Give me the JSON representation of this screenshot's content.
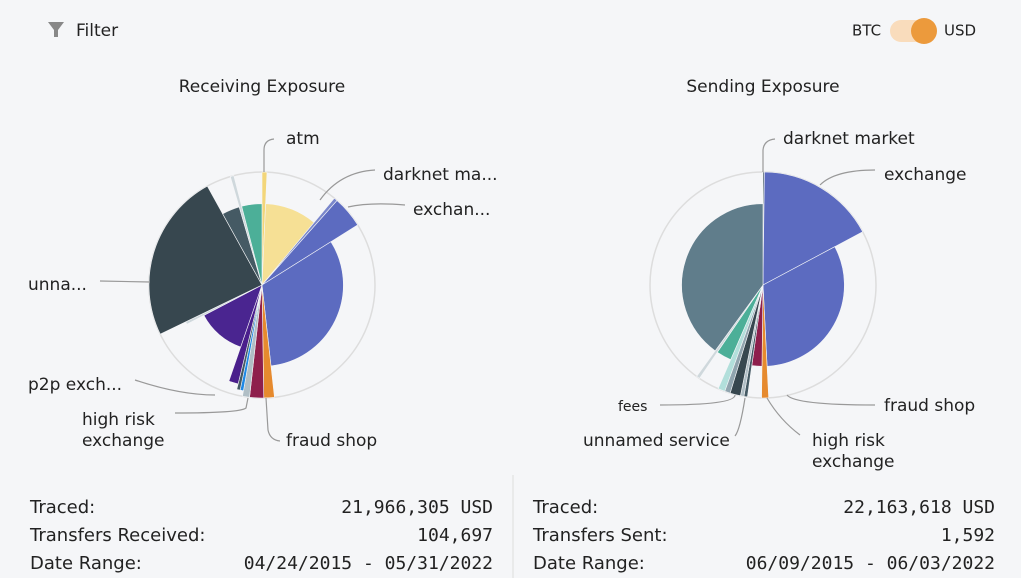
{
  "header": {
    "filter": "Filter",
    "toggle": {
      "left": "BTC",
      "right": "USD"
    }
  },
  "chart_data": [
    {
      "type": "pie",
      "title": "Receiving Exposure",
      "categories": [
        "atm",
        null,
        "darknet ma...",
        "exchan...",
        null,
        "fraud shop",
        "high risk exchange",
        null,
        null,
        null,
        "p2p exch...",
        null,
        null,
        "unna...",
        null,
        null,
        null
      ],
      "values": [
        0.7,
        10.3,
        0.5,
        4.5,
        32,
        1.5,
        2,
        1,
        0.5,
        0.5,
        1.5,
        12,
        0.5,
        24,
        3.5,
        0.5,
        4
      ],
      "radii": [
        100,
        72,
        100,
        100,
        72,
        100,
        100,
        100,
        95,
        95,
        90,
        58,
        75,
        100,
        72,
        100,
        72
      ],
      "colors": [
        "#f3d67a",
        "#f6e095",
        "#7986cb",
        "#5c6bc0",
        "#5c6bc0",
        "#e68a2e",
        "#8e1f4c",
        "#b0bec5",
        "#1e88e5",
        "#455a64",
        "#4a1f8c",
        "#4a2590",
        "#cfd8dc",
        "#37474f",
        "#455a64",
        "#cfd8dc",
        "#4caf98"
      ]
    },
    {
      "type": "pie",
      "title": "Sending Exposure",
      "categories": [
        "darknet market",
        "exchange",
        null,
        "fraud shop",
        null,
        "high risk exchange",
        null,
        null,
        "unnamed service",
        "fees",
        null,
        null,
        null
      ],
      "values": [
        0.2,
        17,
        32,
        1,
        2,
        0.5,
        0.5,
        1.5,
        0.8,
        1,
        3,
        0.5,
        40
      ],
      "radii": [
        100,
        100,
        72,
        100,
        72,
        100,
        100,
        100,
        100,
        100,
        72,
        100,
        72
      ],
      "colors": [
        "#455a64",
        "#5c6bc0",
        "#5c6bc0",
        "#e68a2e",
        "#8e1f4c",
        "#455a64",
        "#b0bec5",
        "#37474f",
        "#90a4ae",
        "#b2dfdb",
        "#4caf98",
        "#cfd8dc",
        "#607d8b"
      ]
    }
  ],
  "stats": [
    {
      "rows": [
        {
          "label": "Traced:",
          "value": "21,966,305 USD"
        },
        {
          "label": "Transfers Received:",
          "value": "104,697"
        },
        {
          "label": "Date Range:",
          "value": "04/24/2015 - 05/31/2022"
        }
      ]
    },
    {
      "rows": [
        {
          "label": "Traced:",
          "value": "22,163,618 USD"
        },
        {
          "label": "Transfers Sent:",
          "value": "1,592"
        },
        {
          "label": "Date Range:",
          "value": "06/09/2015 - 06/03/2022"
        }
      ]
    }
  ]
}
